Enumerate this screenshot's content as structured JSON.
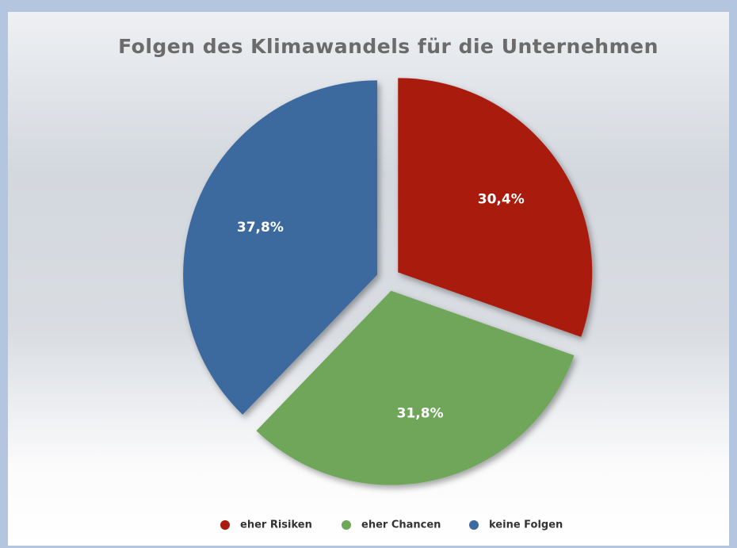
{
  "chart_data": {
    "type": "pie",
    "title": "Folgen des Klimawandels für die Unternehmen",
    "categories": [
      "eher Risiken",
      "eher Chancen",
      "keine Folgen"
    ],
    "values": [
      30.4,
      31.8,
      37.8
    ],
    "value_labels": [
      "30,4%",
      "31,8%",
      "37,8%"
    ],
    "colors": [
      "#a91b0d",
      "#6fa65a",
      "#3d6b9e"
    ],
    "legend": "bottom"
  }
}
